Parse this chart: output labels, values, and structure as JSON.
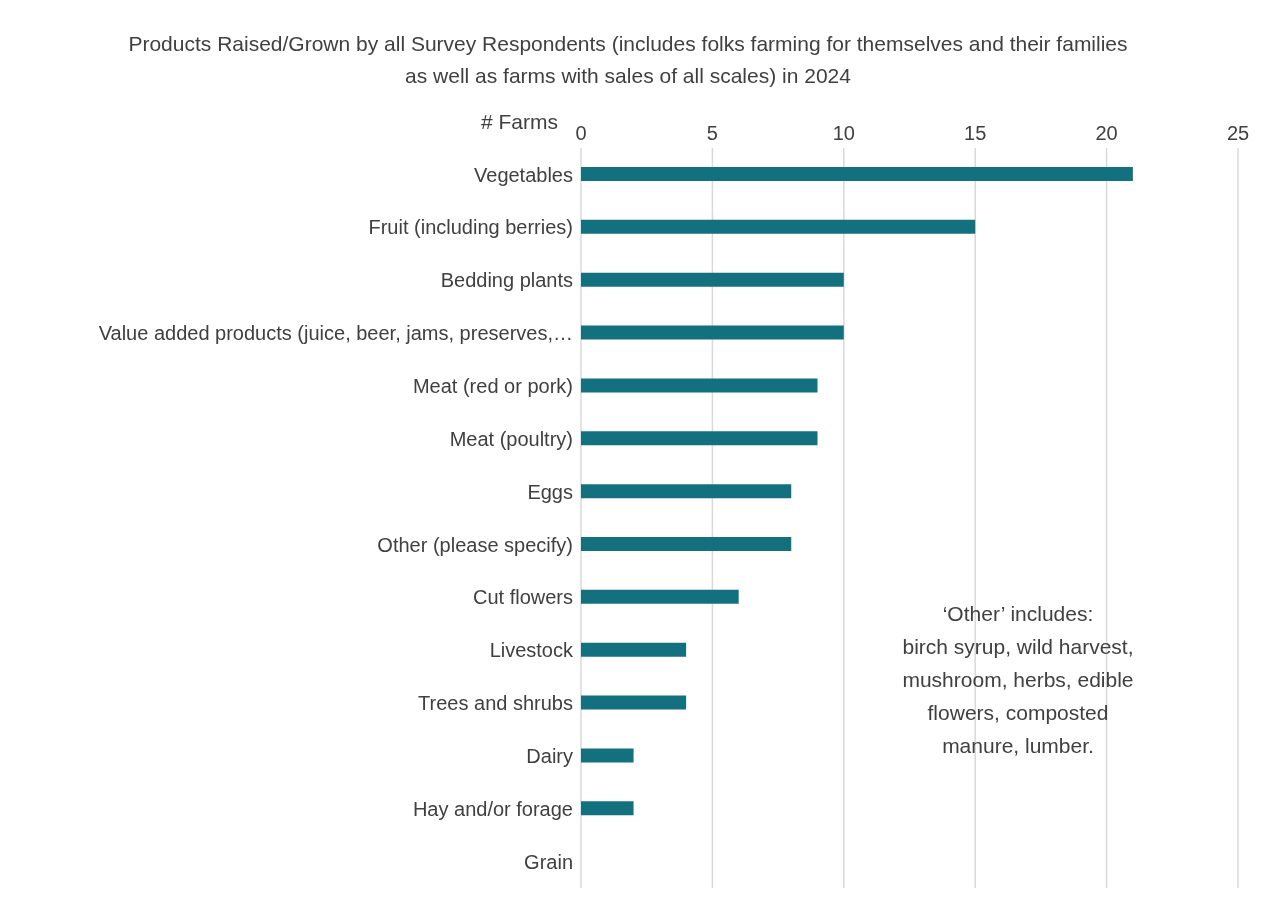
{
  "chart_data": {
    "type": "bar",
    "orientation": "horizontal",
    "title": "Products Raised/Grown by all Survey Respondents (includes folks farming for themselves and their families as well as farms with sales of all scales) in 2024",
    "xlabel": "# Farms",
    "categories": [
      "Vegetables",
      "Fruit (including berries)",
      "Bedding plants",
      "Value added products (juice, beer, jams, preserves,…",
      "Meat (red or pork)",
      "Meat (poultry)",
      "Eggs",
      "Other (please specify)",
      "Cut flowers",
      "Livestock",
      "Trees and shrubs",
      "Dairy",
      "Hay and/or forage",
      "Grain"
    ],
    "values": [
      21,
      15,
      10,
      10,
      9,
      9,
      8,
      8,
      6,
      4,
      4,
      2,
      2,
      0
    ],
    "color": "#13717f",
    "xlim": [
      0,
      25
    ],
    "xticks": [
      0,
      5,
      10,
      15,
      20,
      25
    ],
    "grid": "x",
    "annotations": [
      "‘Other’ includes:\nbirch syrup, wild harvest,\nmushroom, herbs, edible\nflowers, composted\nmanure, lumber."
    ]
  }
}
